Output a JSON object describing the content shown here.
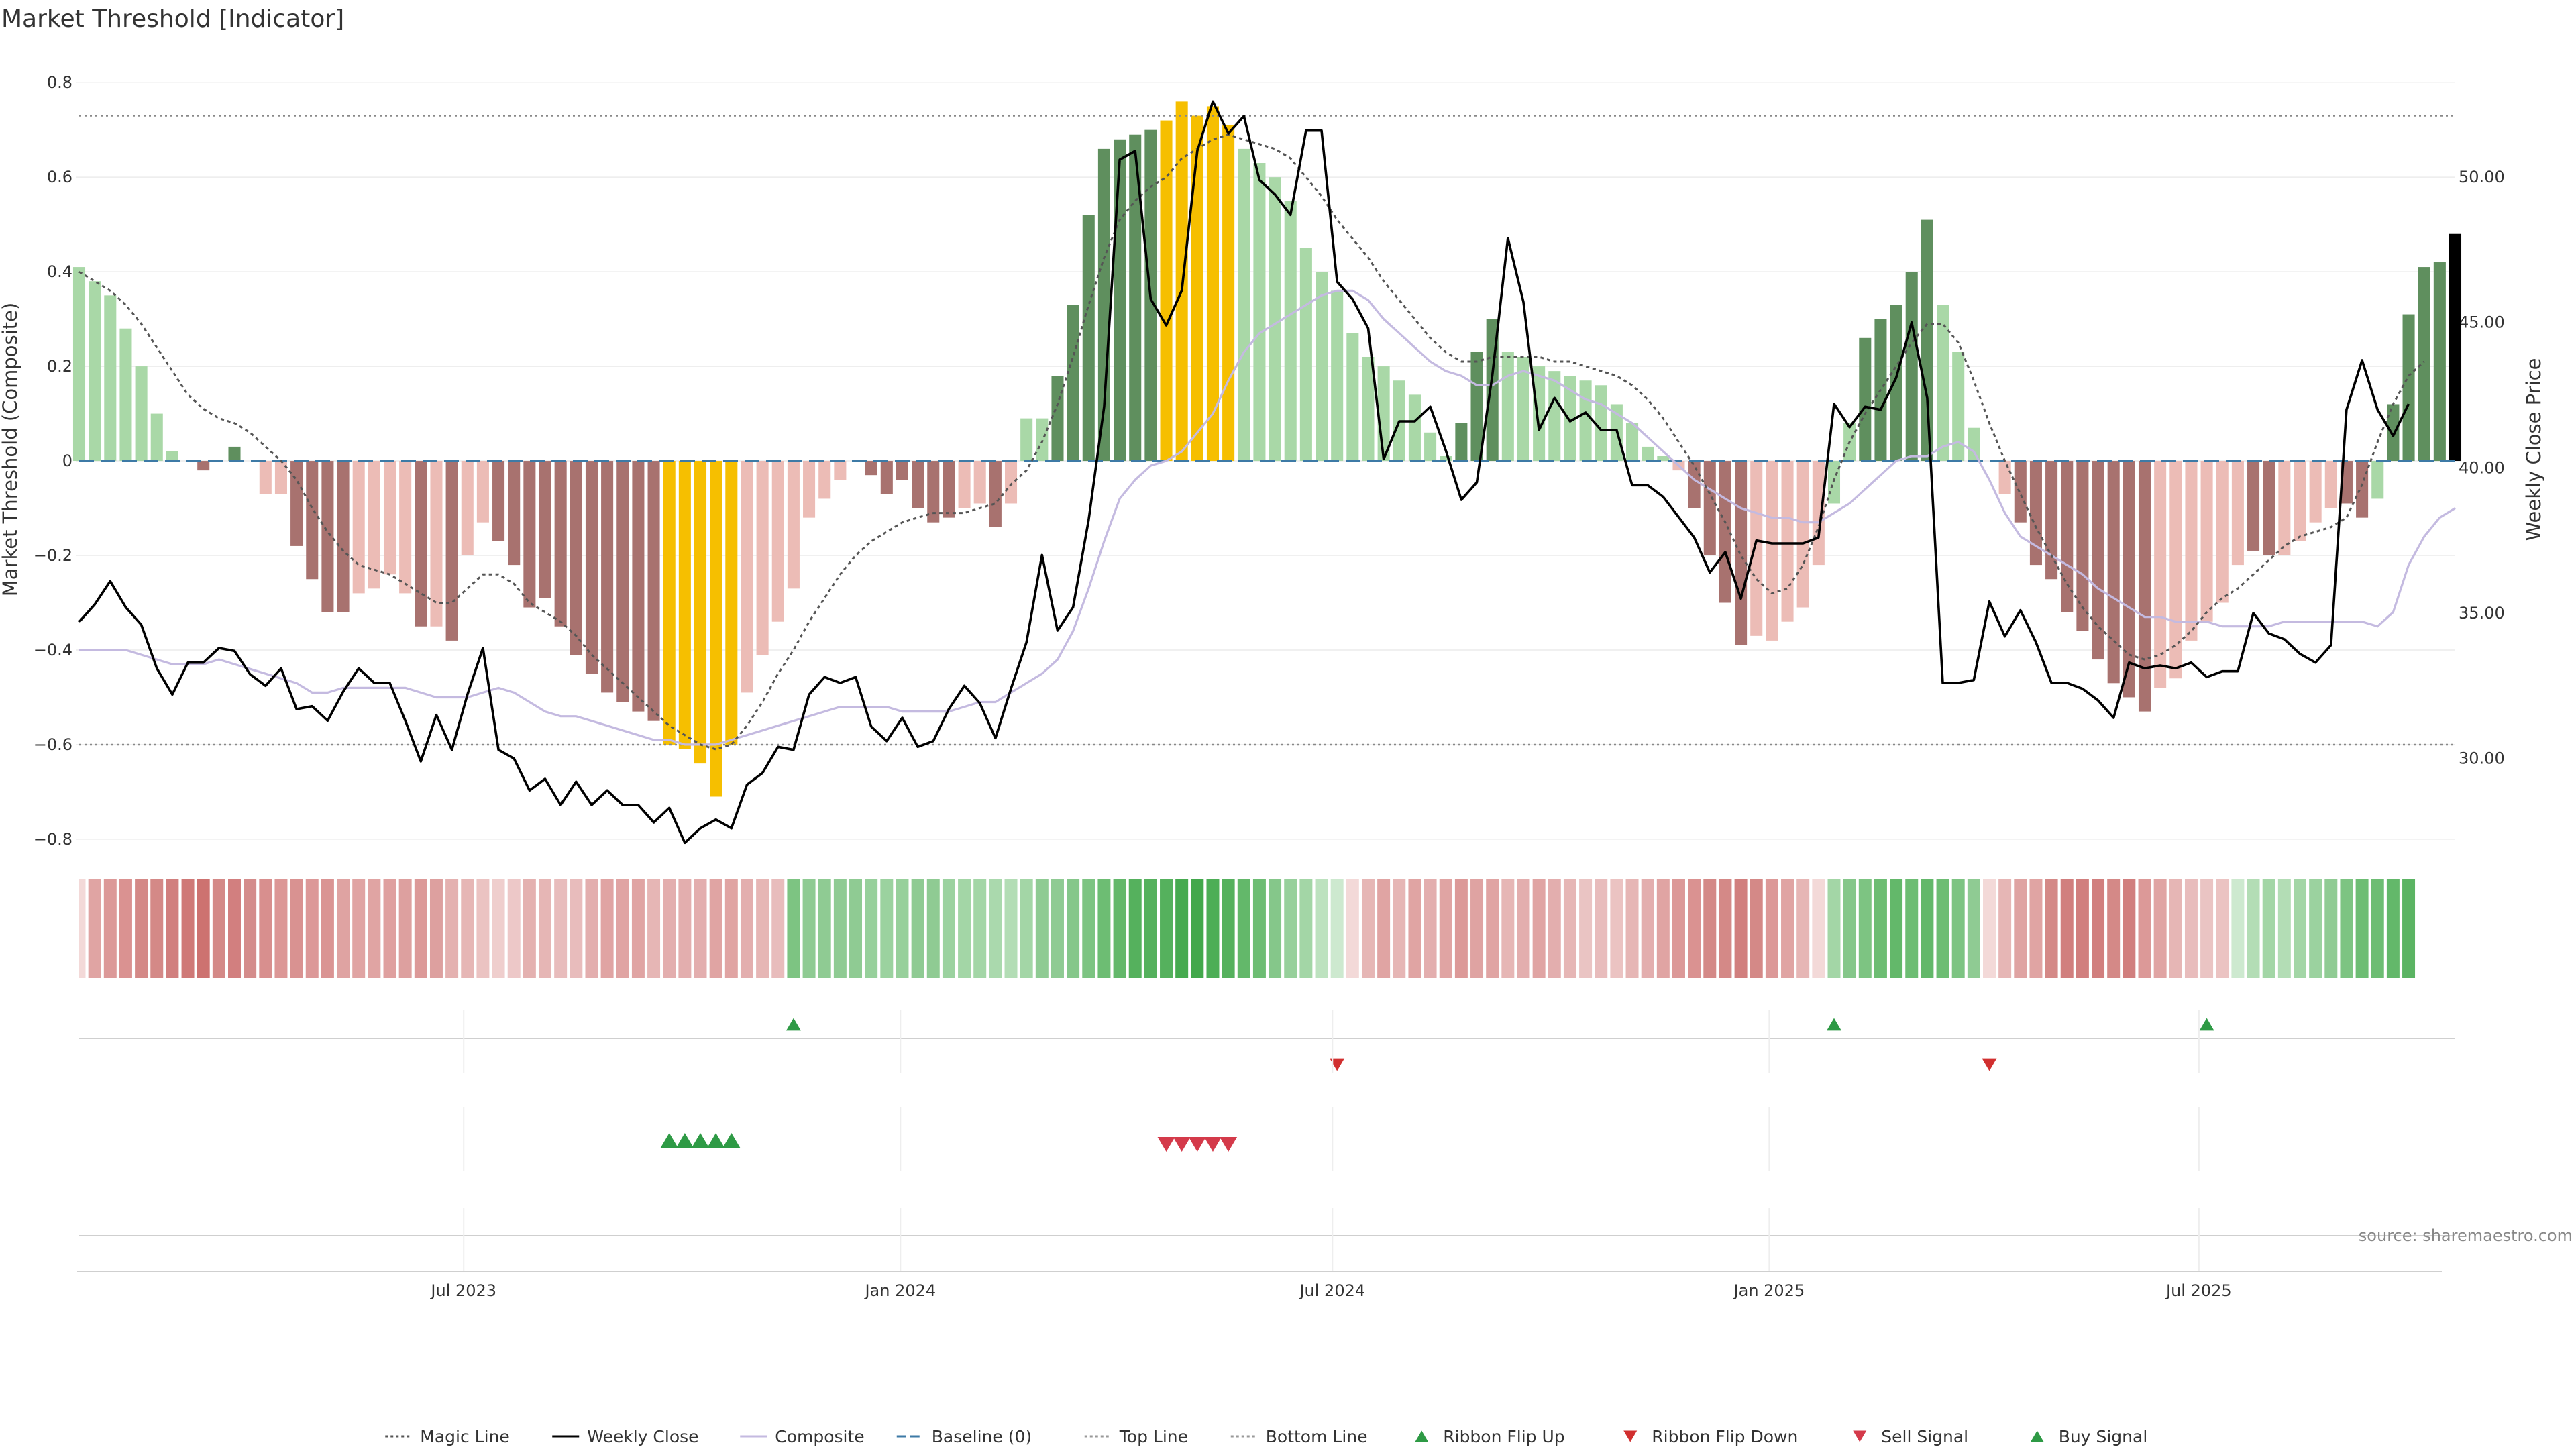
{
  "title": "Market Threshold [Indicator]",
  "source": "source: sharemaestro.com",
  "chart_data": {
    "type": "bar",
    "left_axis": {
      "label": "Market Threshold (Composite)",
      "range": [
        -0.82,
        0.84
      ],
      "ticks": [
        0.8,
        0.6,
        0.4,
        0.2,
        0,
        -0.2,
        -0.4,
        -0.6,
        -0.8
      ],
      "tick_labels": [
        "0.8",
        "0.6",
        "0.4",
        "0.2",
        "0",
        "−0.2",
        "−0.4",
        "−0.6",
        "−0.8"
      ]
    },
    "right_axis": {
      "label": "Weekly Close Price",
      "range": [
        26.9,
        53.9
      ],
      "ticks": [
        50,
        45,
        40,
        35,
        30
      ],
      "tick_labels": [
        "50.00",
        "45.00",
        "40.00",
        "35.00",
        "30.00"
      ]
    },
    "x_axis": {
      "start": "2023-01-20",
      "end": "2025-10-17",
      "ticks": [
        {
          "date": "2023-07-01",
          "label": "Jul 2023"
        },
        {
          "date": "2024-01-01",
          "label": "Jan 2024"
        },
        {
          "date": "2024-07-01",
          "label": "Jul 2024"
        },
        {
          "date": "2025-01-01",
          "label": "Jan 2025"
        },
        {
          "date": "2025-07-01",
          "label": "Jul 2025"
        }
      ]
    },
    "top_line": 0.73,
    "bottom_line": -0.6,
    "baseline": 0,
    "composite": [
      0.41,
      0.38,
      0.35,
      0.28,
      0.2,
      0.1,
      0.02,
      0,
      -0.02,
      0,
      0.03,
      0,
      -0.07,
      -0.07,
      -0.18,
      -0.25,
      -0.32,
      -0.32,
      -0.28,
      -0.27,
      -0.24,
      -0.28,
      -0.35,
      -0.35,
      -0.38,
      -0.2,
      -0.13,
      -0.17,
      -0.22,
      -0.31,
      -0.29,
      -0.35,
      -0.41,
      -0.45,
      -0.49,
      -0.51,
      -0.53,
      -0.55,
      -0.6,
      -0.61,
      -0.64,
      -0.71,
      -0.6,
      -0.49,
      -0.41,
      -0.34,
      -0.27,
      -0.12,
      -0.08,
      -0.04,
      0,
      -0.03,
      -0.07,
      -0.04,
      -0.1,
      -0.13,
      -0.12,
      -0.1,
      -0.09,
      -0.14,
      -0.09,
      0.09,
      0.09,
      0.18,
      0.33,
      0.52,
      0.66,
      0.68,
      0.69,
      0.7,
      0.72,
      0.76,
      0.73,
      0.75,
      0.71,
      0.66,
      0.63,
      0.6,
      0.55,
      0.45,
      0.4,
      0.36,
      0.27,
      0.22,
      0.2,
      0.17,
      0.14,
      0.06,
      0.01,
      0.08,
      0.23,
      0.3,
      0.23,
      0.22,
      0.2,
      0.19,
      0.18,
      0.17,
      0.16,
      0.12,
      0.08,
      0.03,
      0.01,
      -0.02,
      -0.1,
      -0.2,
      -0.3,
      -0.39,
      -0.37,
      -0.38,
      -0.34,
      -0.31,
      -0.22,
      -0.09,
      0.08,
      0.26,
      0.3,
      0.33,
      0.4,
      0.51,
      0.33,
      0.23,
      0.07,
      0,
      -0.07,
      -0.13,
      -0.22,
      -0.25,
      -0.32,
      -0.36,
      -0.42,
      -0.47,
      -0.5,
      -0.53,
      -0.48,
      -0.46,
      -0.38,
      -0.34,
      -0.3,
      -0.22,
      -0.19,
      -0.2,
      -0.2,
      -0.17,
      -0.13,
      -0.1,
      -0.09,
      -0.12,
      -0.08,
      0.12,
      0.31,
      0.41,
      0.42,
      0.48
    ],
    "bar_color_keys": [
      "lg",
      "lg",
      "lg",
      "lg",
      "lg",
      "lg",
      "lg",
      "dr",
      "dr",
      "dr",
      "dg",
      "dr",
      "lr",
      "lr",
      "dr",
      "dr",
      "dr",
      "dr",
      "lr",
      "lr",
      "lr",
      "lr",
      "dr",
      "lr",
      "dr",
      "lr",
      "lr",
      "dr",
      "dr",
      "dr",
      "dr",
      "dr",
      "dr",
      "dr",
      "dr",
      "dr",
      "dr",
      "dr",
      "yl",
      "yl",
      "yl",
      "yl",
      "yl",
      "lr",
      "lr",
      "lr",
      "lr",
      "lr",
      "lr",
      "lr",
      "dr",
      "dr",
      "dr",
      "dr",
      "dr",
      "dr",
      "dr",
      "lr",
      "lr",
      "dr",
      "lr",
      "lg",
      "lg",
      "dg",
      "dg",
      "dg",
      "dg",
      "dg",
      "dg",
      "dg",
      "yl",
      "yl",
      "yl",
      "yl",
      "yl",
      "lg",
      "lg",
      "lg",
      "lg",
      "lg",
      "lg",
      "lg",
      "lg",
      "lg",
      "lg",
      "lg",
      "lg",
      "lg",
      "lg",
      "dg",
      "dg",
      "dg",
      "lg",
      "lg",
      "lg",
      "lg",
      "lg",
      "lg",
      "lg",
      "lg",
      "lg",
      "lg",
      "lg",
      "lr",
      "dr",
      "dr",
      "dr",
      "dr",
      "lr",
      "lr",
      "lr",
      "lr",
      "lr",
      "lg",
      "lg",
      "dg",
      "dg",
      "dg",
      "dg",
      "dg",
      "lg",
      "lg",
      "lg",
      "dr",
      "lr",
      "dr",
      "dr",
      "dr",
      "dr",
      "dr",
      "dr",
      "dr",
      "dr",
      "dr",
      "lr",
      "lr",
      "lr",
      "lr",
      "lr",
      "lr",
      "dr",
      "dr",
      "lr",
      "lr",
      "lr",
      "lr",
      "dr",
      "dr",
      "lg",
      "dg",
      "dg",
      "dg",
      "dg"
    ],
    "bar_colors": {
      "lg": "#a9d8a7",
      "dg": "#5f8f5e",
      "lr": "#ecbcb6",
      "dr": "#a8726f",
      "yl": "#f6bf00"
    },
    "weekly_close": [
      34.7,
      35.3,
      36.1,
      35.2,
      34.6,
      33.1,
      32.2,
      33.3,
      33.3,
      33.8,
      33.7,
      32.9,
      32.5,
      33.1,
      31.7,
      31.8,
      31.3,
      32.3,
      33.1,
      32.6,
      32.6,
      31.3,
      29.9,
      31.5,
      30.3,
      32.2,
      33.8,
      30.3,
      30.0,
      28.9,
      29.3,
      28.4,
      29.2,
      28.4,
      28.9,
      28.4,
      28.4,
      27.8,
      28.3,
      27.1,
      27.6,
      27.9,
      27.6,
      29.1,
      29.5,
      30.4,
      30.3,
      32.2,
      32.8,
      32.6,
      32.8,
      31.1,
      30.6,
      31.4,
      30.4,
      30.6,
      31.7,
      32.5,
      31.9,
      30.7,
      32.4,
      34.0,
      37.0,
      34.4,
      35.2,
      38.2,
      42.1,
      50.6,
      50.9,
      45.8,
      44.9,
      46.1,
      50.9,
      52.6,
      51.5,
      52.1,
      49.9,
      49.4,
      48.7,
      51.6,
      51.6,
      46.4,
      45.8,
      44.8,
      40.3,
      41.6,
      41.6,
      42.1,
      40.6,
      38.9,
      39.5,
      43.2,
      47.9,
      45.7,
      41.3,
      42.4,
      41.6,
      41.9,
      41.3,
      41.3,
      39.4,
      39.4,
      39.0,
      38.3,
      37.6,
      36.4,
      37.1,
      35.5,
      37.5,
      37.4,
      37.4,
      37.4,
      37.6,
      42.2,
      41.4,
      42.1,
      42.0,
      43.1,
      45.0,
      42.4,
      32.6,
      32.6,
      32.7,
      35.4,
      34.2,
      35.1,
      34.0,
      32.6,
      32.6,
      32.4,
      32.0,
      31.4,
      33.3,
      33.1,
      33.2,
      33.1,
      33.3,
      32.8,
      33.0,
      33.0,
      35.0,
      34.3,
      34.1,
      33.6,
      33.3,
      33.9,
      42.0,
      43.7,
      42.0,
      41.1,
      42.2
    ],
    "magic_line": [
      0.4,
      0.38,
      0.36,
      0.33,
      0.29,
      0.24,
      0.19,
      0.14,
      0.11,
      0.09,
      0.08,
      0.06,
      0.03,
      0,
      -0.04,
      -0.1,
      -0.15,
      -0.19,
      -0.22,
      -0.23,
      -0.24,
      -0.26,
      -0.28,
      -0.3,
      -0.3,
      -0.27,
      -0.24,
      -0.24,
      -0.26,
      -0.3,
      -0.32,
      -0.34,
      -0.37,
      -0.41,
      -0.44,
      -0.47,
      -0.5,
      -0.53,
      -0.56,
      -0.58,
      -0.6,
      -0.61,
      -0.6,
      -0.56,
      -0.51,
      -0.45,
      -0.4,
      -0.34,
      -0.29,
      -0.24,
      -0.2,
      -0.17,
      -0.15,
      -0.13,
      -0.12,
      -0.11,
      -0.11,
      -0.11,
      -0.1,
      -0.09,
      -0.05,
      -0.02,
      0.04,
      0.12,
      0.22,
      0.33,
      0.43,
      0.51,
      0.55,
      0.58,
      0.6,
      0.64,
      0.66,
      0.68,
      0.69,
      0.68,
      0.67,
      0.66,
      0.64,
      0.6,
      0.56,
      0.51,
      0.47,
      0.43,
      0.38,
      0.34,
      0.3,
      0.26,
      0.23,
      0.21,
      0.21,
      0.22,
      0.22,
      0.22,
      0.22,
      0.21,
      0.21,
      0.2,
      0.19,
      0.18,
      0.16,
      0.13,
      0.09,
      0.04,
      -0.01,
      -0.07,
      -0.13,
      -0.2,
      -0.25,
      -0.28,
      -0.27,
      -0.22,
      -0.14,
      -0.04,
      0.04,
      0.1,
      0.15,
      0.2,
      0.25,
      0.29,
      0.29,
      0.25,
      0.17,
      0.08,
      0,
      -0.07,
      -0.14,
      -0.2,
      -0.26,
      -0.31,
      -0.35,
      -0.38,
      -0.41,
      -0.42,
      -0.41,
      -0.39,
      -0.36,
      -0.32,
      -0.29,
      -0.27,
      -0.24,
      -0.21,
      -0.18,
      -0.16,
      -0.15,
      -0.14,
      -0.12,
      -0.05,
      0.04,
      0.12,
      0.18,
      0.21
    ],
    "composite_line": [
      -0.4,
      -0.4,
      -0.4,
      -0.4,
      -0.41,
      -0.42,
      -0.43,
      -0.43,
      -0.43,
      -0.42,
      -0.43,
      -0.44,
      -0.45,
      -0.46,
      -0.47,
      -0.49,
      -0.49,
      -0.48,
      -0.48,
      -0.48,
      -0.48,
      -0.48,
      -0.49,
      -0.5,
      -0.5,
      -0.5,
      -0.49,
      -0.48,
      -0.49,
      -0.51,
      -0.53,
      -0.54,
      -0.54,
      -0.55,
      -0.56,
      -0.57,
      -0.58,
      -0.59,
      -0.59,
      -0.6,
      -0.6,
      -0.6,
      -0.59,
      -0.58,
      -0.57,
      -0.56,
      -0.55,
      -0.54,
      -0.53,
      -0.52,
      -0.52,
      -0.52,
      -0.52,
      -0.53,
      -0.53,
      -0.53,
      -0.53,
      -0.52,
      -0.51,
      -0.51,
      -0.49,
      -0.47,
      -0.45,
      -0.42,
      -0.36,
      -0.27,
      -0.17,
      -0.08,
      -0.04,
      -0.01,
      0,
      0.02,
      0.06,
      0.1,
      0.17,
      0.23,
      0.27,
      0.29,
      0.31,
      0.33,
      0.35,
      0.36,
      0.36,
      0.34,
      0.3,
      0.27,
      0.24,
      0.21,
      0.19,
      0.18,
      0.16,
      0.16,
      0.18,
      0.19,
      0.18,
      0.17,
      0.15,
      0.13,
      0.12,
      0.1,
      0.08,
      0.05,
      0.02,
      -0.01,
      -0.04,
      -0.06,
      -0.08,
      -0.1,
      -0.11,
      -0.12,
      -0.12,
      -0.13,
      -0.13,
      -0.11,
      -0.09,
      -0.06,
      -0.03,
      0,
      0.01,
      0.01,
      0.03,
      0.04,
      0.02,
      -0.04,
      -0.11,
      -0.16,
      -0.18,
      -0.2,
      -0.22,
      -0.24,
      -0.27,
      -0.29,
      -0.31,
      -0.33,
      -0.33,
      -0.34,
      -0.34,
      -0.34,
      -0.35,
      -0.35,
      -0.35,
      -0.35,
      -0.34,
      -0.34,
      -0.34,
      -0.34,
      -0.34,
      -0.34,
      -0.35,
      -0.32,
      -0.22,
      -0.16,
      -0.12,
      -0.1
    ],
    "ribbon": [
      "#f3d9d8",
      "#e0a4a3",
      "#dc9998",
      "#da9291",
      "#d48987",
      "#d48987",
      "#d17f7e",
      "#cf7977",
      "#cd7270",
      "#d48987",
      "#d27f7f",
      "#d48c8b",
      "#d88f8e",
      "#dc9796",
      "#d99291",
      "#dc9898",
      "#da9493",
      "#dfa3a2",
      "#e0a4a3",
      "#e0a4a3",
      "#dfa09f",
      "#dda09f",
      "#dc9998",
      "#dda09f",
      "#e4b1b0",
      "#e6b6b5",
      "#ebc3c2",
      "#efcecd",
      "#edc8c8",
      "#e4b1b0",
      "#e6b6b5",
      "#e8bcbc",
      "#e8bcbc",
      "#e3aeae",
      "#e0a4a3",
      "#e0a4a3",
      "#e0a4a3",
      "#e6b6b5",
      "#e3aeae",
      "#e3aeae",
      "#e3aeae",
      "#e0a4a3",
      "#e0a4a3",
      "#e3aeae",
      "#e6b6b5",
      "#e8bcbc",
      "#7dc482",
      "#8fcb93",
      "#8fcb93",
      "#8fcb93",
      "#8fcb93",
      "#97d09b",
      "#9bd29f",
      "#97d09b",
      "#8fcb93",
      "#8fcb93",
      "#9bd29f",
      "#a3d6a6",
      "#a3d6a6",
      "#aad9ad",
      "#b3ddb5",
      "#a3d6a6",
      "#8fcb93",
      "#8fcb93",
      "#85c78a",
      "#7dc482",
      "#6dbd73",
      "#63b86a",
      "#55b15d",
      "#55b15d",
      "#55b15d",
      "#46aa4f",
      "#42a84b",
      "#4dae56",
      "#55b15d",
      "#63b86a",
      "#6dbd73",
      "#85c78a",
      "#97d09b",
      "#a3d6a6",
      "#bde2bf",
      "#cde9cf",
      "#f3d9d8",
      "#e6b6b5",
      "#e0a4a3",
      "#e6b6b5",
      "#e0a4a3",
      "#e3aeae",
      "#e0a4a3",
      "#dc9998",
      "#dfa3a2",
      "#e0a4a3",
      "#e6b6b5",
      "#e3aeae",
      "#e0a4a3",
      "#e3aeae",
      "#e6b6b5",
      "#eac4c3",
      "#e8bcbc",
      "#ebc3c2",
      "#e6b6b5",
      "#e3aeae",
      "#e0a4a3",
      "#dc9998",
      "#da9291",
      "#d48987",
      "#d48987",
      "#d17f7e",
      "#d48987",
      "#dc9998",
      "#e0a4a3",
      "#e6b6b5",
      "#f3d9d8",
      "#a3d6a6",
      "#85c78a",
      "#7dc482",
      "#6dbd73",
      "#63b86a",
      "#6dbd73",
      "#63b86a",
      "#6dbd73",
      "#7dc482",
      "#8fcb93",
      "#f3d9d8",
      "#e6b6b5",
      "#dfa3a2",
      "#e0a4a3",
      "#d48987",
      "#d17f7e",
      "#d17f7e",
      "#d17f7e",
      "#d48987",
      "#d17f7e",
      "#dc9998",
      "#e0a4a3",
      "#e6b6b5",
      "#e8bcbc",
      "#eac4c3",
      "#ebc3c2",
      "#cde9cf",
      "#b3ddb5",
      "#a3d6a6",
      "#b3ddb5",
      "#a3d6a6",
      "#9bd29f",
      "#8fcb93",
      "#7dc482",
      "#6dbd73",
      "#6dbd73",
      "#63b86a",
      "#5bb463"
    ],
    "ribbon_flip_up_weeks": [
      46,
      113,
      137
    ],
    "ribbon_flip_down_weeks": [
      81,
      123
    ],
    "buy_signal_weeks": [
      38,
      39,
      40,
      41,
      42
    ],
    "sell_signal_weeks": [
      70,
      71,
      72,
      73,
      74
    ],
    "legend": [
      {
        "label": "Magic Line",
        "symbol": "dotted",
        "color": "#555555"
      },
      {
        "label": "Weekly Close",
        "symbol": "line",
        "color": "#000000"
      },
      {
        "label": "Composite",
        "symbol": "line",
        "color": "#c4bae0"
      },
      {
        "label": "Baseline (0)",
        "symbol": "dashed",
        "color": "#3d7aa6"
      },
      {
        "label": "Top Line",
        "symbol": "dotted",
        "color": "#999999"
      },
      {
        "label": "Bottom Line",
        "symbol": "dotted",
        "color": "#999999"
      },
      {
        "label": "Ribbon Flip Up",
        "symbol": "triangle-up",
        "color": "#2e9a45"
      },
      {
        "label": "Ribbon Flip Down",
        "symbol": "triangle-down",
        "color": "#d12f2f"
      },
      {
        "label": "Sell Signal",
        "symbol": "triangle-down",
        "color": "#d43a4a"
      },
      {
        "label": "Buy Signal",
        "symbol": "triangle-up",
        "color": "#2e9a45"
      }
    ]
  }
}
